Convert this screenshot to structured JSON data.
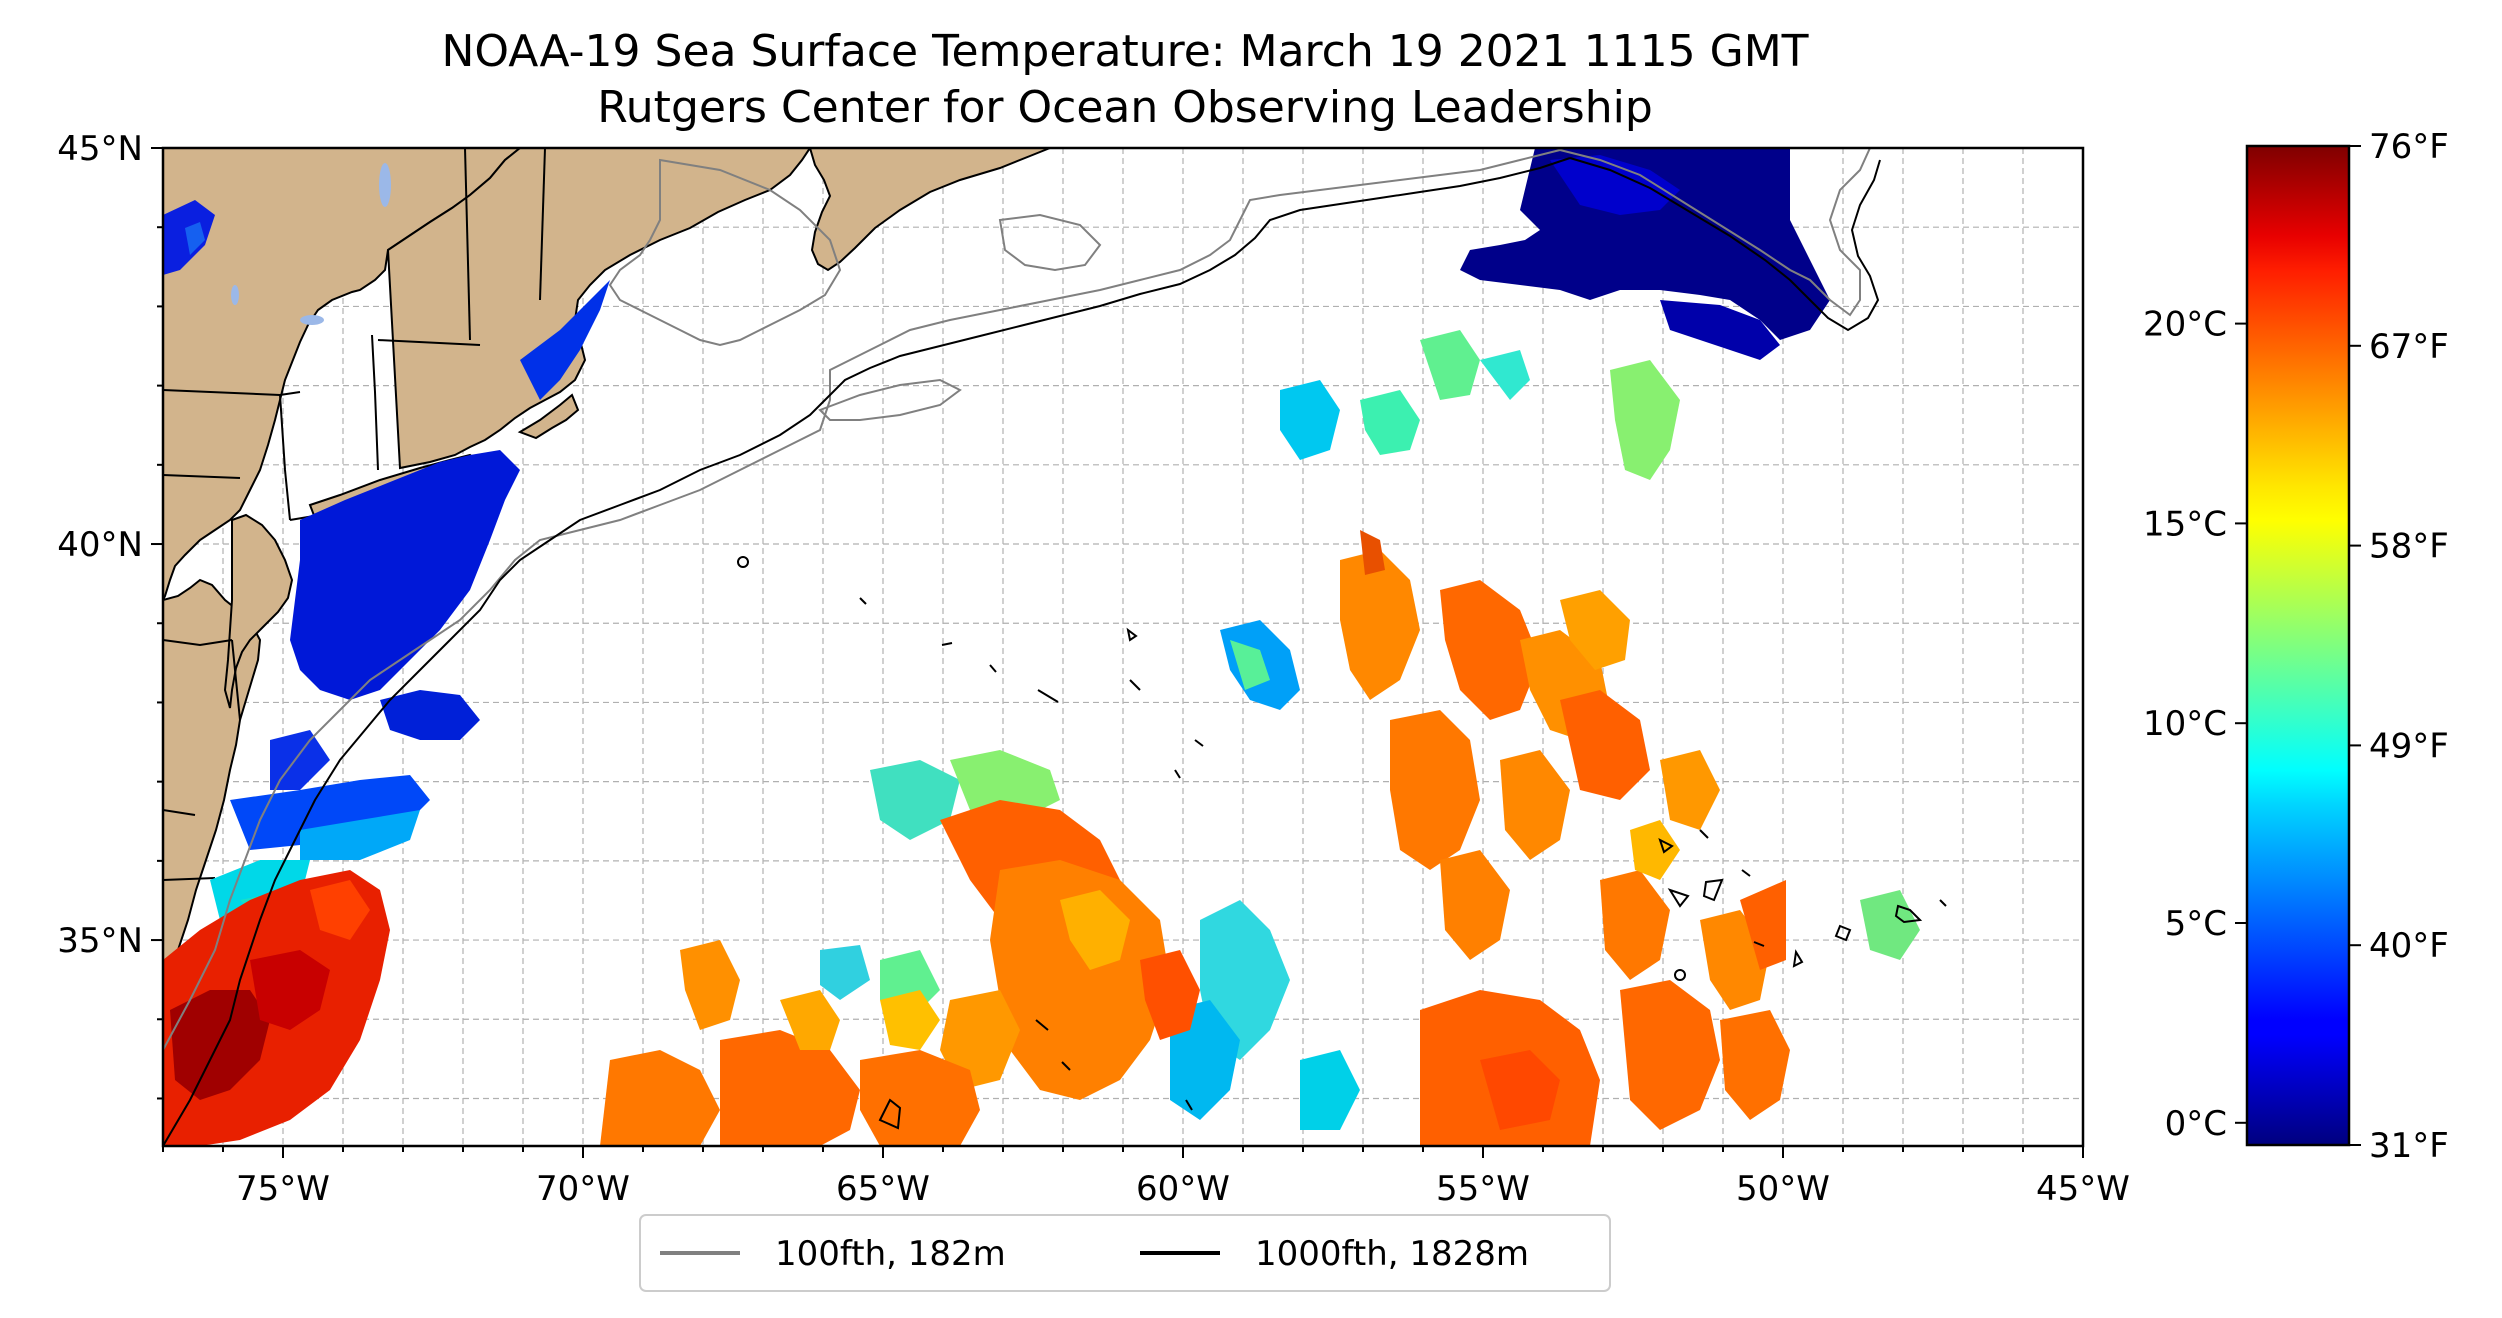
{
  "title": "NOAA-19 Sea Surface Temperature: March 19 2021 1115 GMT",
  "subtitle": "Rutgers Center for Ocean Observing Leadership",
  "map": {
    "lon_range": [
      -77,
      -45
    ],
    "lat_range": [
      32.4,
      45
    ],
    "lon_ticks": [
      {
        "value": -75,
        "label": "75°W"
      },
      {
        "value": -70,
        "label": "70°W"
      },
      {
        "value": -65,
        "label": "65°W"
      },
      {
        "value": -60,
        "label": "60°W"
      },
      {
        "value": -55,
        "label": "55°W"
      },
      {
        "value": -50,
        "label": "50°W"
      },
      {
        "value": -45,
        "label": "45°W"
      }
    ],
    "lat_ticks": [
      {
        "value": 45,
        "label": "45°N"
      },
      {
        "value": 40,
        "label": "40°N"
      },
      {
        "value": 35,
        "label": "35°N"
      }
    ],
    "grid": true,
    "land_color": "#D2B48C",
    "ocean_color": "#FFFFFF",
    "data_gap_color": "#FFFFFF",
    "colormap": "jet"
  },
  "legend": {
    "placement": "bottom-center",
    "entries": [
      {
        "label": "100fth, 182m",
        "color": "#808080"
      },
      {
        "label": "1000fth, 1828m",
        "color": "#000000"
      }
    ]
  },
  "colorbar": {
    "colormap": "jet",
    "celsius_ticks": [
      {
        "value": 0,
        "label": "0°C"
      },
      {
        "value": 5,
        "label": "5°C"
      },
      {
        "value": 10,
        "label": "10°C"
      },
      {
        "value": 15,
        "label": "15°C"
      },
      {
        "value": 20,
        "label": "20°C"
      }
    ],
    "fahrenheit_ticks": [
      {
        "value": 31,
        "label": "31°F"
      },
      {
        "value": 40,
        "label": "40°F"
      },
      {
        "value": 49,
        "label": "49°F"
      },
      {
        "value": 58,
        "label": "58°F"
      },
      {
        "value": 67,
        "label": "67°F"
      },
      {
        "value": 76,
        "label": "76°F"
      }
    ]
  }
}
